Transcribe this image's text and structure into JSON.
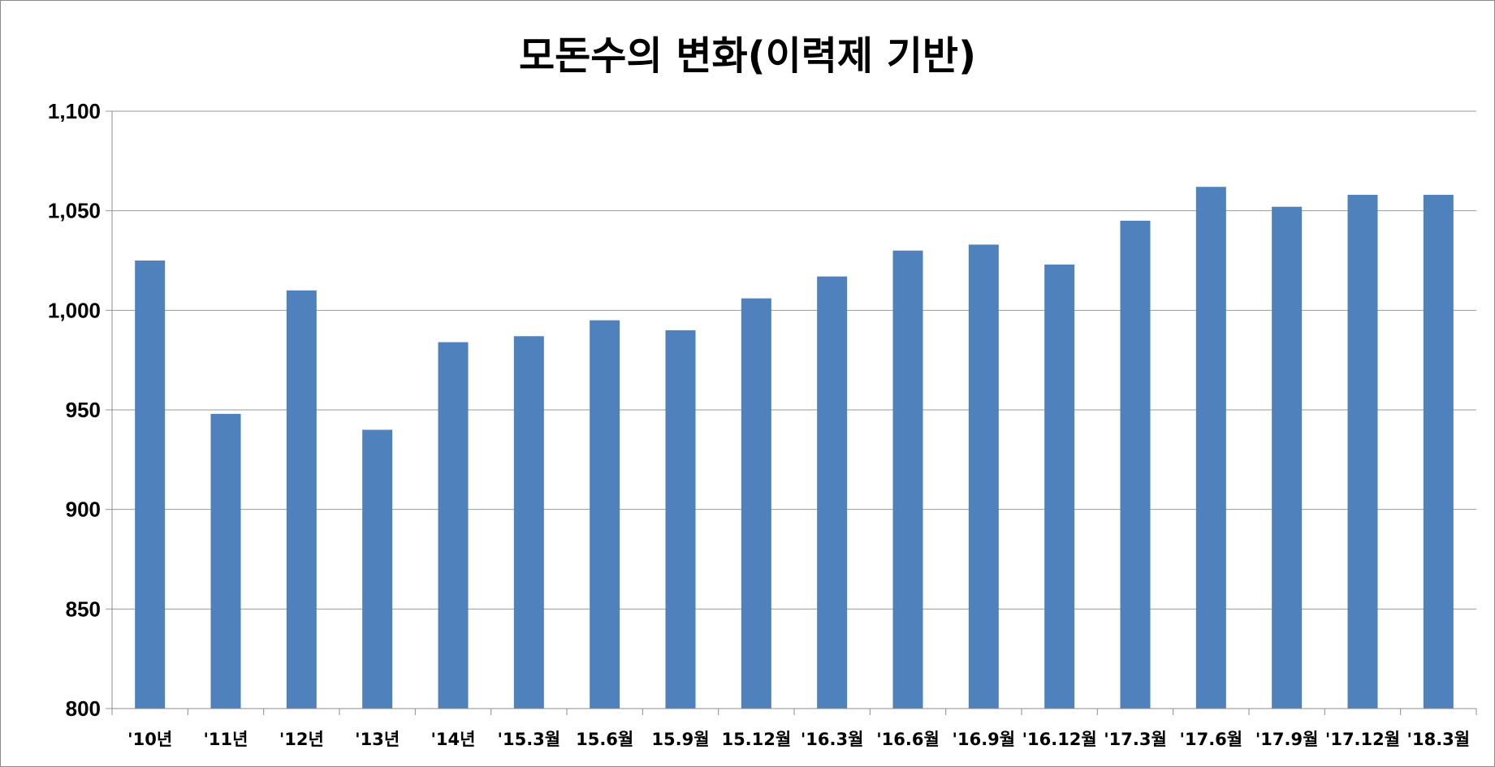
{
  "chart_data": {
    "type": "bar",
    "title": "모돈수의 변화(이력제 기반)",
    "xlabel": "",
    "ylabel": "",
    "ylim": [
      800,
      1100
    ],
    "yticks": [
      800,
      850,
      900,
      950,
      1000,
      1050,
      1100
    ],
    "ytick_labels": [
      "800",
      "850",
      "900",
      "950",
      "1,000",
      "1,050",
      "1,100"
    ],
    "grid": true,
    "legend": "none",
    "bar_color": "#4f81bd",
    "categories": [
      "'10년",
      "'11년",
      "'12년",
      "'13년",
      "'14년",
      "'15.3월",
      "15.6월",
      "15.9월",
      "15.12월",
      "'16.3월",
      "'16.6월",
      "'16.9월",
      "'16.12월",
      "'17.3월",
      "'17.6월",
      "'17.9월",
      "'17.12월",
      "'18.3월"
    ],
    "values": [
      1025,
      948,
      1010,
      940,
      984,
      987,
      995,
      990,
      1006,
      1017,
      1030,
      1033,
      1023,
      1045,
      1062,
      1052,
      1058,
      1058
    ]
  }
}
